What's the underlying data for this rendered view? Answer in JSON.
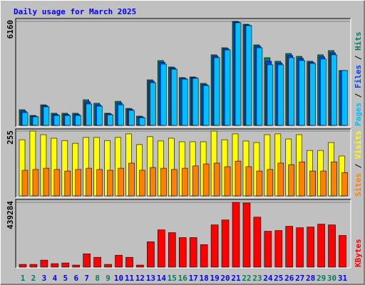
{
  "chart_data": [
    {
      "type": "bar",
      "title": "Daily usage for March 2025",
      "legend_separator": " / ",
      "ylim": [
        0,
        6160
      ],
      "yticks": [
        6160
      ],
      "series": [
        {
          "name": "Hits",
          "color": "#00805c",
          "values": [
            930,
            590,
            1220,
            720,
            720,
            720,
            1520,
            1310,
            720,
            1430,
            1010,
            550,
            2700,
            3840,
            3460,
            2830,
            2870,
            2490,
            4180,
            4600,
            6160,
            5990,
            4770,
            4010,
            3800,
            4260,
            4090,
            3800,
            4180,
            4430,
            3250
          ]
        },
        {
          "name": "Files",
          "color": "#0040ff",
          "values": [
            850,
            550,
            1160,
            650,
            650,
            650,
            1400,
            1220,
            680,
            1320,
            950,
            500,
            2620,
            3740,
            3400,
            2790,
            2830,
            2420,
            4100,
            4540,
            6120,
            5950,
            4690,
            3800,
            3700,
            4140,
            3970,
            3740,
            4060,
            4300,
            3250
          ]
        },
        {
          "name": "Pages",
          "color": "#00c0ff",
          "values": [
            760,
            510,
            1100,
            590,
            590,
            590,
            1270,
            1140,
            630,
            1220,
            890,
            460,
            2530,
            3630,
            3330,
            2740,
            2790,
            2360,
            4010,
            4470,
            6080,
            5910,
            4600,
            3590,
            3590,
            4010,
            3840,
            3670,
            3930,
            4180,
            3250
          ]
        }
      ]
    },
    {
      "type": "bar",
      "legend_separator": " / ",
      "ylim": [
        0,
        255
      ],
      "yticks": [
        255
      ],
      "series": [
        {
          "name": "Visits",
          "color": "#ffff00",
          "values": [
            221,
            255,
            241,
            227,
            218,
            207,
            230,
            230,
            218,
            230,
            244,
            202,
            233,
            216,
            227,
            213,
            213,
            213,
            255,
            221,
            244,
            216,
            210,
            241,
            244,
            224,
            241,
            179,
            179,
            210,
            157
          ]
        },
        {
          "name": "Sites",
          "color": "#ff8000",
          "values": [
            101,
            104,
            109,
            104,
            98,
            104,
            109,
            104,
            101,
            109,
            129,
            101,
            112,
            109,
            104,
            109,
            118,
            126,
            129,
            115,
            137,
            115,
            98,
            104,
            129,
            123,
            134,
            98,
            98,
            134,
            92
          ]
        }
      ]
    },
    {
      "type": "bar",
      "ylim": [
        0,
        439284
      ],
      "yticks": [
        439284
      ],
      "categories": [
        "1",
        "2",
        "3",
        "4",
        "5",
        "6",
        "7",
        "8",
        "9",
        "10",
        "11",
        "12",
        "13",
        "14",
        "15",
        "16",
        "17",
        "18",
        "19",
        "20",
        "21",
        "22",
        "23",
        "24",
        "25",
        "26",
        "27",
        "28",
        "29",
        "30",
        "31"
      ],
      "category_colors": [
        "#00805c",
        "#00805c",
        "#0000ff",
        "#0000ff",
        "#0000ff",
        "#0000ff",
        "#0000ff",
        "#00805c",
        "#00805c",
        "#0000ff",
        "#0000ff",
        "#0000ff",
        "#0000ff",
        "#0000ff",
        "#00805c",
        "#00805c",
        "#0000ff",
        "#0000ff",
        "#0000ff",
        "#0000ff",
        "#0000ff",
        "#00805c",
        "#00805c",
        "#0000ff",
        "#0000ff",
        "#0000ff",
        "#0000ff",
        "#0000ff",
        "#00805c",
        "#00805c",
        "#0000ff"
      ],
      "series": [
        {
          "name": "KBytes",
          "color": "#ff0000",
          "values": [
            19000,
            19000,
            47700,
            24000,
            28600,
            14300,
            90700,
            66800,
            19000,
            81200,
            66800,
            14300,
            171900,
            253100,
            234000,
            200500,
            200500,
            152800,
            286500,
            319900,
            439284,
            434500,
            339000,
            243500,
            248300,
            277000,
            267400,
            272200,
            291300,
            286500,
            214900
          ]
        }
      ]
    }
  ]
}
